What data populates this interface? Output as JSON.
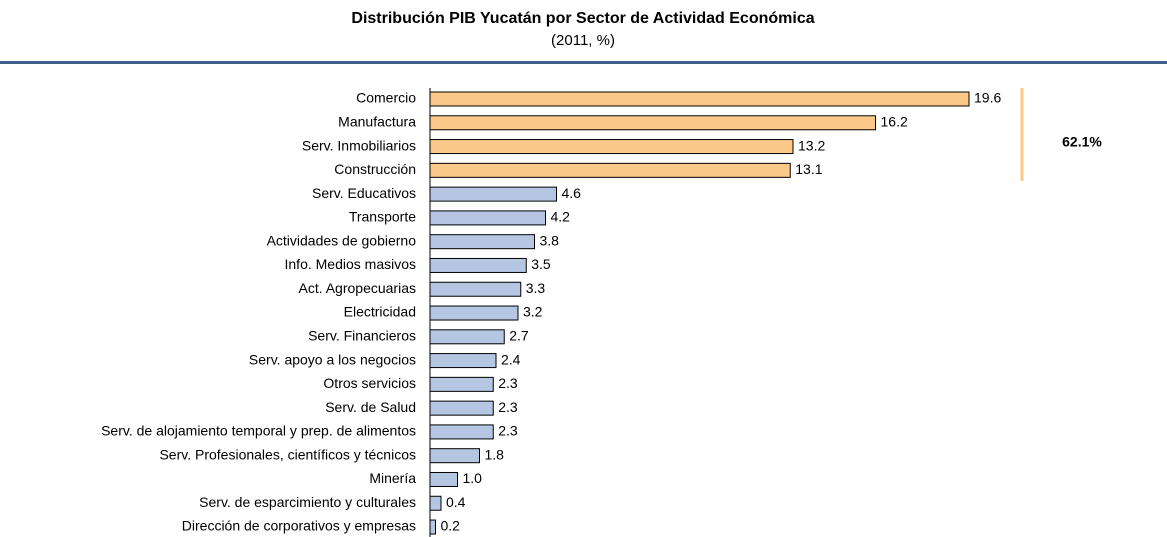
{
  "chart_data": {
    "type": "hbar",
    "title": "Distribución PIB Yucatán por Sector de Actividad Económica",
    "subtitle": "(2011, %)",
    "categories": [
      "Comercio",
      "Manufactura",
      "Serv. Inmobiliarios",
      "Construcción",
      "Serv. Educativos",
      "Transporte",
      "Actividades de gobierno",
      "Info. Medios masivos",
      "Act. Agropecuarias",
      "Electricidad",
      "Serv. Financieros",
      "Serv. apoyo a los negocios",
      "Otros servicios",
      "Serv. de Salud",
      "Serv. de alojamiento temporal y prep. de alimentos",
      "Serv. Profesionales, científicos y técnicos",
      "Minería",
      "Serv. de esparcimiento y culturales",
      "Dirección de corporativos y empresas"
    ],
    "values": [
      19.6,
      16.2,
      13.2,
      13.1,
      4.6,
      4.2,
      3.8,
      3.5,
      3.3,
      3.2,
      2.7,
      2.4,
      2.3,
      2.3,
      2.3,
      1.8,
      1.0,
      0.4,
      0.2
    ],
    "value_labels": [
      "19.6",
      "16.2",
      "13.2",
      "13.1",
      "4.6",
      "4.2",
      "3.8",
      "3.5",
      "3.3",
      "3.2",
      "2.7",
      "2.4",
      "2.3",
      "2.3",
      "2.3",
      "1.8",
      "1.0",
      "0.4",
      "0.2"
    ],
    "colors": [
      "#fac98a",
      "#fac98a",
      "#fac98a",
      "#fac98a",
      "#b4c6e2",
      "#b4c6e2",
      "#b4c6e2",
      "#b4c6e2",
      "#b4c6e2",
      "#b4c6e2",
      "#b4c6e2",
      "#b4c6e2",
      "#b4c6e2",
      "#b4c6e2",
      "#b4c6e2",
      "#b4c6e2",
      "#b4c6e2",
      "#b4c6e2",
      "#b4c6e2"
    ],
    "xlim": [
      0,
      20
    ],
    "annotations": [
      {
        "text": "62.1%",
        "color": "#fac98a"
      }
    ]
  }
}
